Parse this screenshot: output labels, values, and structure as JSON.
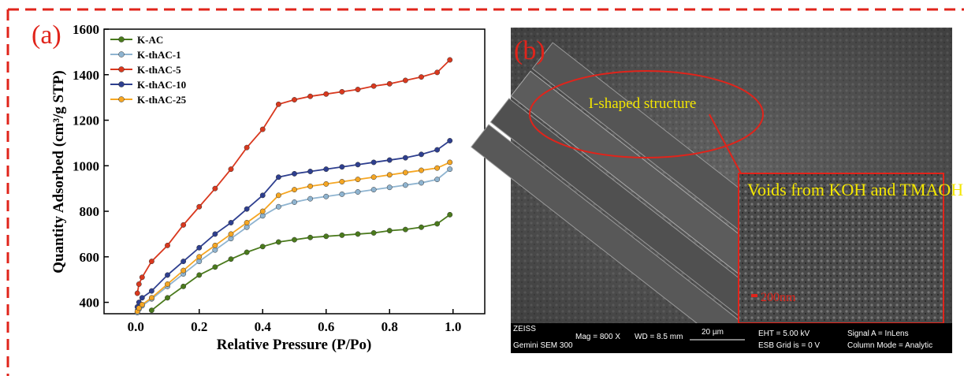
{
  "chart_data": {
    "type": "line",
    "panel_label": "(a)",
    "xlabel": "Relative Pressure (P/Po)",
    "ylabel": "Quantity Adsorbed (cm³/g STP)",
    "xlim": [
      -0.1,
      1.1
    ],
    "ylim": [
      350,
      1600
    ],
    "xticks": [
      {
        "value": 0,
        "label": "0.0"
      },
      0.2,
      0.4,
      0.6,
      0.8,
      {
        "value": 1,
        "label": "1.0"
      }
    ],
    "yticks": [
      400,
      600,
      800,
      1000,
      1200,
      1400,
      1600
    ],
    "legend": "upper left",
    "x": [
      0.005,
      0.01,
      0.02,
      0.05,
      0.1,
      0.15,
      0.2,
      0.25,
      0.3,
      0.35,
      0.4,
      0.45,
      0.5,
      0.55,
      0.6,
      0.65,
      0.7,
      0.75,
      0.8,
      0.85,
      0.9,
      0.95,
      0.99
    ],
    "series": [
      {
        "name": "K-AC",
        "color": "#4a7a1c",
        "values": [
          null,
          null,
          null,
          365,
          420,
          470,
          520,
          555,
          590,
          620,
          645,
          665,
          675,
          685,
          690,
          695,
          700,
          705,
          715,
          720,
          730,
          745,
          785
        ]
      },
      {
        "name": "K-thAC-1",
        "color": "#8fb4d0",
        "values": [
          355,
          370,
          385,
          415,
          470,
          525,
          580,
          630,
          680,
          730,
          780,
          820,
          840,
          855,
          865,
          875,
          885,
          895,
          905,
          915,
          925,
          940,
          985
        ]
      },
      {
        "name": "K-thAC-5",
        "color": "#d9381e",
        "values": [
          440,
          480,
          510,
          580,
          650,
          740,
          820,
          900,
          985,
          1080,
          1160,
          1270,
          1290,
          1305,
          1315,
          1325,
          1335,
          1350,
          1360,
          1375,
          1390,
          1410,
          1465
        ]
      },
      {
        "name": "K-thAC-10",
        "color": "#2e3f8f",
        "values": [
          380,
          400,
          420,
          450,
          520,
          580,
          640,
          700,
          750,
          810,
          870,
          950,
          965,
          975,
          985,
          995,
          1005,
          1015,
          1025,
          1035,
          1050,
          1070,
          1110
        ]
      },
      {
        "name": "K-thAC-25",
        "color": "#f5a623",
        "values": [
          360,
          375,
          390,
          420,
          480,
          540,
          600,
          650,
          700,
          750,
          800,
          870,
          895,
          910,
          920,
          930,
          940,
          950,
          960,
          970,
          980,
          990,
          1015
        ]
      }
    ]
  },
  "panel_b": {
    "label": "(b)",
    "ellipse_text": "I-shaped structure",
    "inset_text": "Voids from KOH and TMAOH",
    "scale_text": "200nm",
    "info": {
      "brand": "ZEISS",
      "model": "Gemini SEM 300",
      "mag": "Mag =   800 X",
      "wd": "WD =  8.5 mm",
      "scale": "20 µm",
      "eht": "EHT =  5.00 kV",
      "grid": "ESB Grid is =     0 V",
      "signal": "Signal A = InLens",
      "mode": "Column Mode = Analytic"
    }
  }
}
